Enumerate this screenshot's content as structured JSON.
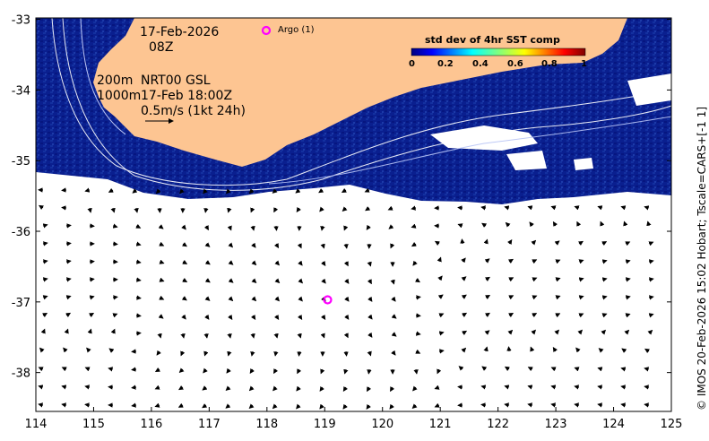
{
  "map": {
    "date": "17-Feb-2026",
    "time": "08Z",
    "depth_label_1": "200m",
    "depth_label_2": "1000m",
    "product": "NRT00 GSL",
    "product_time": "17-Feb 18:00Z",
    "scale_label": "0.5m/s (1kt 24h)",
    "argo_label": "Argo (1)",
    "credit": "© IMOS 20-Feb-2026 15:02 Hobart; Tscale=CARS+[-1 1]",
    "lon_ticks": [
      "114",
      "115",
      "116",
      "117",
      "118",
      "119",
      "120",
      "121",
      "122",
      "123",
      "124",
      "125"
    ],
    "lat_ticks": [
      "-33",
      "-34",
      "-35",
      "-36",
      "-37",
      "-38"
    ],
    "lon_range": [
      114,
      125
    ],
    "lat_range": [
      -38.55,
      -32.98
    ],
    "argo_float": {
      "lon": 119.05,
      "lat": -36.97
    }
  },
  "colorbar": {
    "title": "std dev of 4hr SST comp",
    "ticks": [
      "0",
      "0.2",
      "0.4",
      "0.6",
      "0.8",
      "1"
    ]
  },
  "colors": {
    "land": "#fdc592",
    "ocean_data": "#0a1f8f",
    "argo": "#ff00ff"
  }
}
